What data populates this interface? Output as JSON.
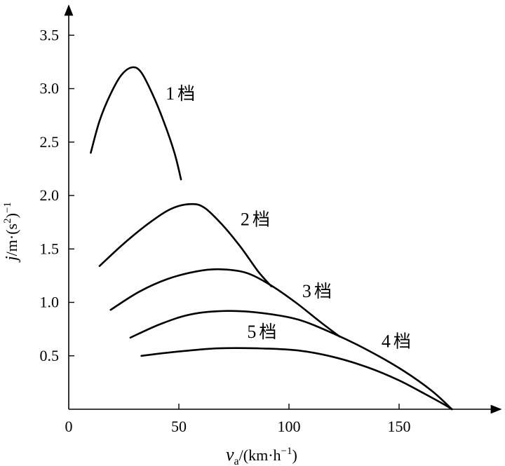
{
  "chart_data": {
    "type": "line",
    "x_axis": {
      "label_var": "v",
      "label_sub": "a",
      "label_rest": "/(km·h",
      "label_sup": "−1",
      "label_close": ")",
      "ticks": [
        0,
        50,
        100,
        150
      ],
      "range": [
        0,
        198
      ]
    },
    "y_axis": {
      "label_var": "j",
      "label_rest1": "/m·(s",
      "label_sup1": "2",
      "label_rest2": ")",
      "label_sup2": "−1",
      "ticks": [
        "0.5",
        "1.0",
        "1.5",
        "2.0",
        "2.5",
        "3.0",
        "3.5"
      ],
      "range": [
        0,
        3.8
      ]
    },
    "series": [
      {
        "name": "1档",
        "label_value": "1",
        "label_unit": "档",
        "points": [
          [
            10,
            2.4
          ],
          [
            14,
            2.7
          ],
          [
            19,
            2.95
          ],
          [
            24,
            3.13
          ],
          [
            29,
            3.2
          ],
          [
            33,
            3.15
          ],
          [
            38,
            2.95
          ],
          [
            43,
            2.7
          ],
          [
            48,
            2.4
          ],
          [
            51,
            2.15
          ]
        ]
      },
      {
        "name": "2档",
        "label_value": "2",
        "label_unit": "档",
        "points": [
          [
            14,
            1.34
          ],
          [
            25,
            1.55
          ],
          [
            37,
            1.75
          ],
          [
            47,
            1.88
          ],
          [
            56,
            1.92
          ],
          [
            62,
            1.88
          ],
          [
            70,
            1.72
          ],
          [
            78,
            1.52
          ],
          [
            86,
            1.29
          ],
          [
            92,
            1.15
          ]
        ]
      },
      {
        "name": "3档",
        "label_value": "3",
        "label_unit": "档",
        "points": [
          [
            19,
            0.93
          ],
          [
            32,
            1.1
          ],
          [
            45,
            1.22
          ],
          [
            58,
            1.29
          ],
          [
            68,
            1.31
          ],
          [
            80,
            1.28
          ],
          [
            91,
            1.17
          ],
          [
            103,
            1.0
          ],
          [
            114,
            0.82
          ],
          [
            123,
            0.68
          ]
        ]
      },
      {
        "name": "4档",
        "label_value": "4",
        "label_unit": "档",
        "points": [
          [
            28,
            0.67
          ],
          [
            42,
            0.8
          ],
          [
            56,
            0.89
          ],
          [
            72,
            0.92
          ],
          [
            88,
            0.9
          ],
          [
            104,
            0.84
          ],
          [
            120,
            0.71
          ],
          [
            136,
            0.55
          ],
          [
            152,
            0.36
          ],
          [
            165,
            0.17
          ],
          [
            174,
            0.0
          ]
        ]
      },
      {
        "name": "5档",
        "label_value": "5",
        "label_unit": "档",
        "points": [
          [
            33,
            0.5
          ],
          [
            50,
            0.54
          ],
          [
            68,
            0.57
          ],
          [
            86,
            0.57
          ],
          [
            104,
            0.55
          ],
          [
            120,
            0.49
          ],
          [
            136,
            0.39
          ],
          [
            150,
            0.27
          ],
          [
            162,
            0.14
          ],
          [
            170,
            0.05
          ],
          [
            174,
            0.0
          ]
        ]
      }
    ],
    "grid": false,
    "legend": "none"
  }
}
